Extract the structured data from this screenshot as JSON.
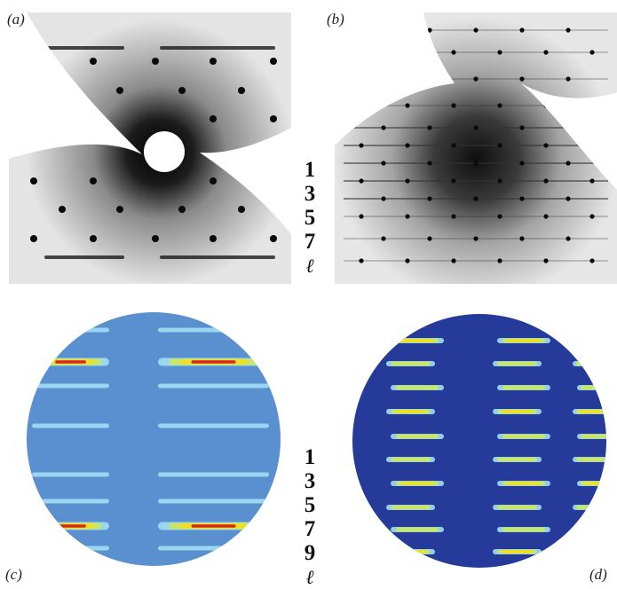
{
  "panels": {
    "a": {
      "label": "(a)"
    },
    "b": {
      "label": "(b)"
    },
    "c": {
      "label": "(c)"
    },
    "d": {
      "label": "(d)"
    }
  },
  "layer_labels_top": [
    "1",
    "3",
    "5",
    "7"
  ],
  "layer_labels_bottom": [
    "1",
    "3",
    "5",
    "7",
    "9"
  ],
  "layer_symbol": "ℓ",
  "colors": {
    "xray_dark": "#111111",
    "xray_bg": "#e2e2e2",
    "sim_c_bg": "#5a8fd0",
    "sim_d_bg": "#263a9a",
    "streak_low": "#9fdff2",
    "streak_mid": "#c8e66a",
    "streak_high": "#f2e020",
    "streak_peak": "#d8281c"
  }
}
